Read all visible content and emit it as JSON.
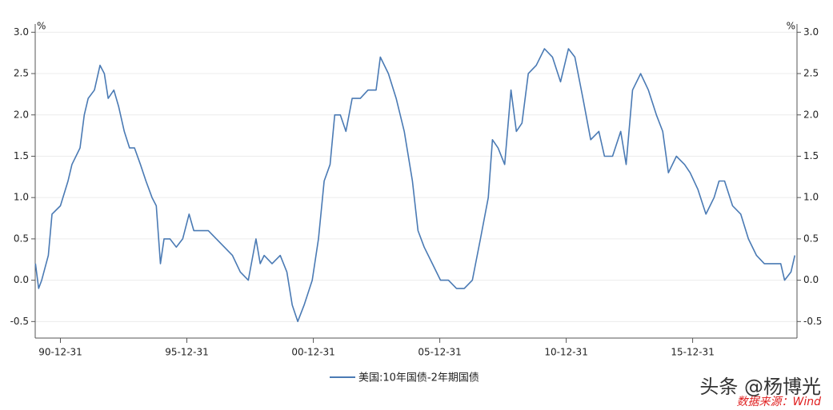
{
  "chart_data": {
    "type": "line",
    "y_unit": "%",
    "y2_unit": "%",
    "x": [
      "1990-01-05",
      "1990-02-20",
      "1990-04-05",
      "1990-07-10",
      "1990-09-01",
      "1990-12-31",
      "1991-04-20",
      "1991-06-15",
      "1991-10-10",
      "1991-12-10",
      "1992-02-05",
      "1992-05-05",
      "1992-07-25",
      "1992-09-25",
      "1992-11-20",
      "1993-02-10",
      "1993-04-20",
      "1993-07-10",
      "1993-09-25",
      "1993-12-05",
      "1994-03-01",
      "1994-05-20",
      "1994-08-15",
      "1994-10-15",
      "1994-12-15",
      "1995-02-05",
      "1995-05-01",
      "1995-08-01",
      "1995-11-01",
      "1996-02-01",
      "1996-04-10",
      "1996-07-10",
      "1996-11-05",
      "1997-03-01",
      "1997-06-25",
      "1997-10-20",
      "1998-02-10",
      "1998-06-05",
      "1998-09-25",
      "1998-11-25",
      "1999-01-20",
      "1999-05-15",
      "1999-09-10",
      "1999-12-15",
      "2000-03-01",
      "2000-05-20",
      "2000-08-20",
      "2000-12-15",
      "2001-03-15",
      "2001-06-05",
      "2001-08-30",
      "2001-11-05",
      "2002-01-25",
      "2002-04-15",
      "2002-07-15",
      "2002-11-10",
      "2003-03-01",
      "2003-06-25",
      "2003-08-25",
      "2003-12-20",
      "2004-04-10",
      "2004-08-05",
      "2004-12-01",
      "2005-02-20",
      "2005-05-20",
      "2005-09-15",
      "2006-01-10",
      "2006-05-05",
      "2006-08-30",
      "2006-12-20",
      "2007-04-15",
      "2007-08-10",
      "2007-12-01",
      "2008-01-30",
      "2008-04-20",
      "2008-07-25",
      "2008-10-25",
      "2009-01-10",
      "2009-04-01",
      "2009-07-01",
      "2009-10-25",
      "2010-02-20",
      "2010-06-15",
      "2010-10-10",
      "2011-02-01",
      "2011-05-05",
      "2011-08-30",
      "2011-12-20",
      "2012-04-15",
      "2012-07-05",
      "2012-10-30",
      "2013-02-25",
      "2013-05-15",
      "2013-08-15",
      "2013-12-10",
      "2014-04-01",
      "2014-07-25",
      "2014-10-25",
      "2015-01-15",
      "2015-05-10",
      "2015-09-05",
      "2015-11-25",
      "2016-03-15",
      "2016-07-10",
      "2016-11-05",
      "2017-01-15",
      "2017-04-05",
      "2017-07-30",
      "2017-11-25",
      "2018-03-15",
      "2018-07-10",
      "2018-11-01",
      "2019-03-01",
      "2019-06-25",
      "2019-08-20",
      "2019-11-20",
      "2020-01-15"
    ],
    "series": [
      {
        "name": "美国:10年国债-2年期国债",
        "color": "#4a7ab4",
        "values": [
          0.2,
          -0.1,
          0.0,
          0.3,
          0.8,
          0.9,
          1.2,
          1.4,
          1.6,
          2.0,
          2.2,
          2.3,
          2.6,
          2.5,
          2.2,
          2.3,
          2.1,
          1.8,
          1.6,
          1.6,
          1.4,
          1.2,
          1.0,
          0.9,
          0.2,
          0.5,
          0.5,
          0.4,
          0.5,
          0.8,
          0.6,
          0.6,
          0.6,
          0.5,
          0.4,
          0.3,
          0.1,
          0.0,
          0.5,
          0.2,
          0.3,
          0.2,
          0.3,
          0.1,
          -0.3,
          -0.5,
          -0.3,
          0.0,
          0.5,
          1.2,
          1.4,
          2.0,
          2.0,
          1.8,
          2.2,
          2.2,
          2.3,
          2.3,
          2.7,
          2.5,
          2.2,
          1.8,
          1.2,
          0.6,
          0.4,
          0.2,
          0.0,
          0.0,
          -0.1,
          -0.1,
          0.0,
          0.5,
          1.0,
          1.7,
          1.6,
          1.4,
          2.3,
          1.8,
          1.9,
          2.5,
          2.6,
          2.8,
          2.7,
          2.4,
          2.8,
          2.7,
          2.2,
          1.7,
          1.8,
          1.5,
          1.5,
          1.8,
          1.4,
          2.3,
          2.5,
          2.3,
          2.0,
          1.8,
          1.3,
          1.5,
          1.4,
          1.3,
          1.1,
          0.8,
          1.0,
          1.2,
          1.2,
          0.9,
          0.8,
          0.5,
          0.3,
          0.2,
          0.2,
          0.2,
          0.0,
          0.1,
          0.3
        ]
      }
    ],
    "xlim": [
      "1990-01-01",
      "2020-02-15"
    ],
    "xticks": [
      {
        "value": "1990-12-31",
        "label": "90-12-31"
      },
      {
        "value": "1995-12-31",
        "label": "95-12-31"
      },
      {
        "value": "2000-12-31",
        "label": "00-12-31"
      },
      {
        "value": "2005-12-31",
        "label": "05-12-31"
      },
      {
        "value": "2010-12-31",
        "label": "10-12-31"
      },
      {
        "value": "2015-12-31",
        "label": "15-12-31"
      }
    ],
    "ylim": [
      -0.7,
      3.1
    ],
    "yticks": [
      -0.5,
      {
        "value": 0,
        "label": "0.0"
      },
      0.5,
      {
        "value": 1,
        "label": "1.0"
      },
      1.5,
      {
        "value": 2,
        "label": "2.0"
      },
      2.5,
      {
        "value": 3,
        "label": "3.0"
      }
    ],
    "y2lim": [
      -0.7,
      3.1
    ],
    "y2ticks": [
      -0.5,
      {
        "value": 0,
        "label": "0.0"
      },
      0.5,
      {
        "value": 1,
        "label": "1.0"
      },
      1.5,
      {
        "value": 2,
        "label": "2.0"
      },
      2.5,
      {
        "value": 3,
        "label": "3.0"
      }
    ],
    "grid": true,
    "legend": "bottom",
    "watermark": "头条 @杨博光",
    "source": "数据来源：Wind"
  }
}
